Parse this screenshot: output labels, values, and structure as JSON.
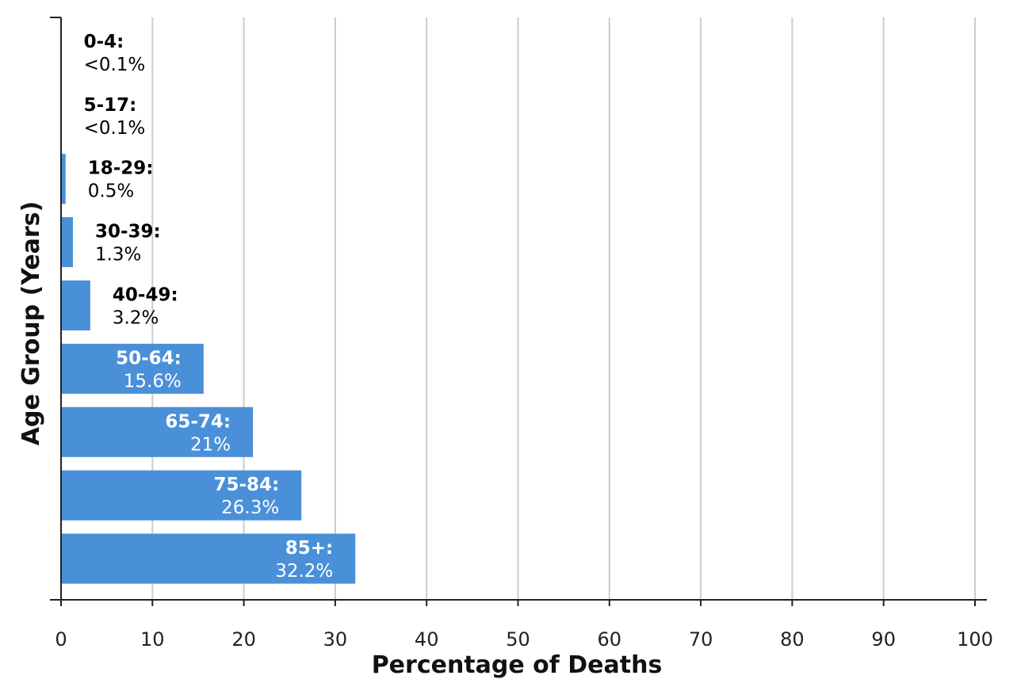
{
  "chart_data": {
    "type": "bar",
    "orientation": "horizontal",
    "xlabel": "Percentage of Deaths",
    "ylabel": "Age Group (Years)",
    "xlim": [
      0,
      100
    ],
    "xticks": [
      "0",
      "10",
      "20",
      "30",
      "40",
      "50",
      "60",
      "70",
      "80",
      "90",
      "100"
    ],
    "grid": "vertical",
    "bar_color": "#4a90d9",
    "categories": [
      "0-4",
      "5-17",
      "18-29",
      "30-39",
      "40-49",
      "50-64",
      "65-74",
      "75-84",
      "85+"
    ],
    "values": [
      0.05,
      0.05,
      0.5,
      1.3,
      3.2,
      15.6,
      21,
      26.3,
      32.2
    ],
    "category_labels": [
      "0-4:",
      "5-17:",
      "18-29:",
      "30-39:",
      "40-49:",
      "50-64:",
      "65-74:",
      "75-84:",
      "85+:"
    ],
    "value_labels": [
      "<0.1%",
      "<0.1%",
      "0.5%",
      "1.3%",
      "3.2%",
      "15.6%",
      "21%",
      "26.3%",
      "32.2%"
    ]
  }
}
